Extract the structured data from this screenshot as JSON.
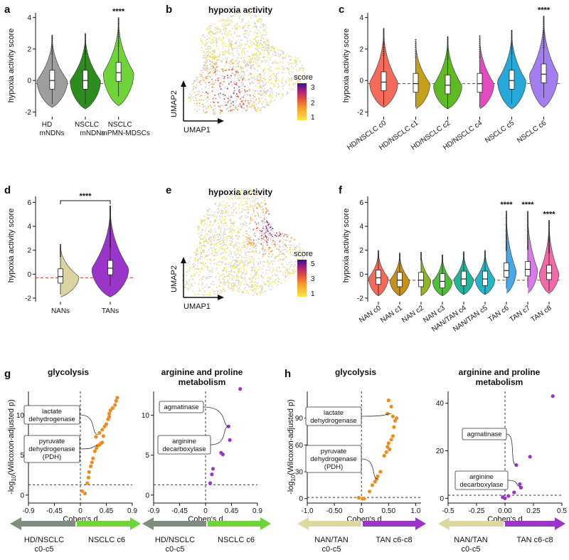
{
  "figure": {
    "colors": {
      "hd_mndns": "#9e9e9e",
      "nsclc_mndns": "#2e8b1e",
      "nsclc_mpmn": "#6fd33a",
      "nans": "#dcd4a0",
      "tans": "#9b35c9",
      "glyco_dot": "#f28b1e",
      "arg_dot": "#9b35c9",
      "gray_arrow": "#7f8c7f",
      "green_arrow": "#6fd33a",
      "beige_arrow": "#ddd8a0",
      "purple_arrow": "#9b35c9",
      "median_line": "#c0392b"
    }
  },
  "chart_data": [
    {
      "panel": "a",
      "type": "violin",
      "ylabel": "hypoxia activity score",
      "categories": [
        "HD mNDNs",
        "NSCLC mNDNs",
        "NSCLC mPMN-MDSCs"
      ],
      "medians": [
        0.0,
        0.0,
        0.5
      ],
      "ranges": [
        [
          -1.7,
          2.9
        ],
        [
          -1.8,
          3.0
        ],
        [
          -1.6,
          4.0
        ]
      ],
      "yticks": [
        -2,
        0,
        2,
        4
      ],
      "ylim": [
        -2.3,
        4.3
      ],
      "ref_line": -0.2,
      "significance": [
        {
          "category": 2,
          "label": "****"
        }
      ]
    },
    {
      "panel": "b",
      "type": "umap",
      "title": "hypoxia activity",
      "xlabel": "UMAP1",
      "ylabel": "UMAP2",
      "legend_title": "score",
      "legend_ticks": [
        "3",
        "2",
        "1"
      ]
    },
    {
      "panel": "c",
      "type": "violin",
      "ylabel": "hypoxia activity score",
      "categories": [
        "HD/NSCLC c0",
        "HD/NSCLC c1",
        "HD/NSCLC c2",
        "HD/NSCLC c4",
        "NSCLC c5",
        "NSCLC c6"
      ],
      "medians": [
        -0.1,
        -0.2,
        -0.3,
        -0.2,
        0.0,
        0.4
      ],
      "ranges": [
        [
          -1.7,
          3.3
        ],
        [
          -1.8,
          2.6
        ],
        [
          -1.8,
          2.8
        ],
        [
          -1.8,
          2.9
        ],
        [
          -1.8,
          3.2
        ],
        [
          -1.7,
          4.1
        ]
      ],
      "yticks": [
        -2,
        0,
        2,
        4
      ],
      "ylim": [
        -2.3,
        4.3
      ],
      "ref_line": -0.2,
      "significance": [
        {
          "category": 5,
          "label": "****"
        }
      ]
    },
    {
      "panel": "d",
      "type": "violin",
      "ylabel": "hypoxia activity score",
      "categories": [
        "NANs",
        "TANs"
      ],
      "medians": [
        -0.2,
        0.5
      ],
      "ranges": [
        [
          -1.9,
          2.5
        ],
        [
          -1.9,
          5.7
        ]
      ],
      "yticks": [
        -2,
        0,
        2,
        4,
        6
      ],
      "ylim": [
        -2.3,
        6.5
      ],
      "ref_line": -0.3,
      "bracket": {
        "from": 0,
        "to": 1,
        "label": "****"
      }
    },
    {
      "panel": "e",
      "type": "umap",
      "title": "hypoxia activity",
      "xlabel": "UMAP1",
      "ylabel": "UMAP2",
      "legend_title": "score",
      "legend_ticks": [
        "5",
        "3",
        "1"
      ]
    },
    {
      "panel": "f",
      "type": "violin",
      "ylabel": "hypoxia activity score",
      "categories": [
        "NAN c0",
        "NAN c1",
        "NAN c2",
        "NAN c3",
        "NAN/TAN c4",
        "NAN/TAN c5",
        "TAN c6",
        "TAN c7",
        "TAN c8"
      ],
      "medians": [
        -0.3,
        -0.5,
        -0.5,
        -0.6,
        -0.4,
        -0.4,
        0.3,
        0.4,
        0.1
      ],
      "ranges": [
        [
          -1.8,
          2.0
        ],
        [
          -1.8,
          1.8
        ],
        [
          -1.8,
          1.9
        ],
        [
          -1.8,
          1.6
        ],
        [
          -1.7,
          1.9
        ],
        [
          -1.7,
          2.0
        ],
        [
          -1.6,
          5.3
        ],
        [
          -1.6,
          5.3
        ],
        [
          -1.6,
          4.5
        ]
      ],
      "yticks": [
        -2,
        0,
        2,
        4,
        6
      ],
      "ylim": [
        -2.3,
        6.5
      ],
      "ref_line": -0.5,
      "significance": [
        {
          "category": 6,
          "label": "****"
        },
        {
          "category": 7,
          "label": "****"
        },
        {
          "category": 8,
          "label": "****"
        }
      ]
    },
    {
      "panel": "g",
      "type": "scatter",
      "title": "glycolysis",
      "xlabel": "Cohen's d",
      "ylabel": "-log10(Wilcoxon-adjusted p)",
      "xlim": [
        -0.9,
        0.9
      ],
      "xticks": [
        "-0.9",
        "-0.45",
        "0",
        "0.45",
        "0.9"
      ],
      "ylim": [
        -1,
        13
      ],
      "yticks": [
        "0",
        "5",
        "10"
      ],
      "threshold_y": 1.3,
      "points": [
        [
          0.03,
          0.5
        ],
        [
          0.08,
          0.2
        ],
        [
          0.12,
          1.5
        ],
        [
          0.14,
          2.2
        ],
        [
          0.15,
          2.9
        ],
        [
          0.18,
          3.6
        ],
        [
          0.2,
          4.1
        ],
        [
          0.22,
          4.6
        ],
        [
          0.25,
          5.5
        ],
        [
          0.28,
          5.9
        ],
        [
          0.3,
          6.2
        ],
        [
          0.33,
          6.3
        ],
        [
          0.36,
          6.5
        ],
        [
          0.38,
          6.6
        ],
        [
          0.27,
          7.3
        ],
        [
          0.33,
          7.8
        ],
        [
          0.38,
          8.2
        ],
        [
          0.42,
          8.6
        ],
        [
          0.45,
          8.9
        ],
        [
          0.48,
          9.5
        ],
        [
          0.5,
          10.2
        ],
        [
          0.52,
          10.6
        ],
        [
          0.56,
          10.9
        ],
        [
          0.6,
          11.3
        ],
        [
          0.62,
          11.8
        ],
        [
          0.64,
          12.2
        ],
        [
          0.5,
          9.8
        ],
        [
          0.4,
          7.4
        ]
      ],
      "labels": [
        {
          "text": "lactate dehydrogenase",
          "point": [
            0.3,
            7.6
          ]
        },
        {
          "text": "pyruvate dehydrogenase (PDH)",
          "point": [
            0.3,
            6.2
          ]
        }
      ]
    },
    {
      "panel": "g2",
      "type": "scatter",
      "title": "arginine and proline metabolism",
      "xlabel": "Cohen's d",
      "ylabel": "",
      "xlim": [
        -0.9,
        0.9
      ],
      "xticks": [
        "-0.9",
        "-0.45",
        "0",
        "0.45",
        "0.9"
      ],
      "ylim": [
        -1,
        13
      ],
      "threshold_y": 1.3,
      "points": [
        [
          0.08,
          1.5
        ],
        [
          0.11,
          2.6
        ],
        [
          0.13,
          3.3
        ],
        [
          0.27,
          5.3
        ],
        [
          0.3,
          5.1
        ],
        [
          0.42,
          6.9
        ],
        [
          0.4,
          8.6
        ],
        [
          0.6,
          13.3
        ]
      ],
      "labels": [
        {
          "text": "agmatinase",
          "point": [
            0.4,
            8.6
          ]
        },
        {
          "text": "arginine decarboxylase",
          "point": [
            0.4,
            8.6
          ]
        }
      ]
    },
    {
      "panel": "h",
      "type": "scatter",
      "title": "glycolysis",
      "xlabel": "Cohen's d",
      "ylabel": "-log10(Wilcoxon-adjusted p)",
      "xlim": [
        -1.0,
        1.1
      ],
      "xticks": [
        "-1.0",
        "-0.50",
        "0",
        "0.50",
        "1.0"
      ],
      "ylim": [
        -5,
        120
      ],
      "yticks": [
        "0",
        "30",
        "60",
        "90"
      ],
      "threshold_y": 1.3,
      "points": [
        [
          -0.05,
          1
        ],
        [
          0.02,
          0
        ],
        [
          0.05,
          0
        ],
        [
          0.15,
          8
        ],
        [
          0.2,
          15
        ],
        [
          0.25,
          19
        ],
        [
          0.28,
          22
        ],
        [
          0.3,
          25
        ],
        [
          0.35,
          30
        ],
        [
          0.42,
          48
        ],
        [
          0.46,
          52
        ],
        [
          0.48,
          58
        ],
        [
          0.5,
          62
        ],
        [
          0.52,
          55
        ],
        [
          0.55,
          66
        ],
        [
          0.58,
          70
        ],
        [
          0.6,
          80
        ],
        [
          0.62,
          87
        ],
        [
          0.65,
          90
        ],
        [
          0.48,
          95
        ],
        [
          0.5,
          110
        ],
        [
          0.55,
          103
        ],
        [
          0.58,
          92
        ]
      ],
      "labels": [
        {
          "text": "lactate dehydrogenase",
          "point": [
            0.55,
            95
          ]
        },
        {
          "text": "pyruvate dehydrogenase (PDH)",
          "point": [
            0.3,
            22
          ]
        }
      ]
    },
    {
      "panel": "h2",
      "type": "scatter",
      "title": "arginine and proline metabolism",
      "xlabel": "Cohen's d",
      "ylabel": "",
      "xlim": [
        -0.5,
        0.5
      ],
      "xticks": [
        "-0.5",
        "-0.25",
        "0.00",
        "0.25",
        "0.5"
      ],
      "ylim": [
        -2,
        45
      ],
      "yticks": [
        "0",
        "20",
        "40"
      ],
      "threshold_y": 1.3,
      "points": [
        [
          -0.02,
          0.5
        ],
        [
          0.0,
          0
        ],
        [
          0.03,
          1
        ],
        [
          0.08,
          2.5
        ],
        [
          0.1,
          14
        ],
        [
          0.13,
          6
        ],
        [
          0.14,
          4.5
        ],
        [
          0.22,
          17.5
        ],
        [
          0.42,
          43
        ]
      ],
      "labels": [
        {
          "text": "agmatinase",
          "point": [
            0.1,
            14
          ]
        },
        {
          "text": "arginine decarboxylase",
          "point": [
            0.14,
            5
          ]
        }
      ]
    }
  ],
  "panels": {
    "a": {
      "letter": "a",
      "ylabel": "hypoxia activity score",
      "xticks": [
        "HD mNDNs",
        "NSCLC mNDNs",
        "NSCLC mPMN-MDSCs"
      ]
    },
    "b": {
      "letter": "b",
      "title": "hypoxia activity",
      "xlabel": "UMAP1",
      "ylabel": "UMAP2",
      "legend_title": "score",
      "legend_ticks": [
        "3",
        "2",
        "1"
      ]
    },
    "c": {
      "letter": "c",
      "ylabel": "hypoxia activity score"
    },
    "d": {
      "letter": "d",
      "ylabel": "hypoxia activity score"
    },
    "e": {
      "letter": "e",
      "title": "hypoxia activity",
      "xlabel": "UMAP1",
      "ylabel": "UMAP2",
      "legend_title": "score",
      "legend_ticks": [
        "5",
        "3",
        "1"
      ]
    },
    "f": {
      "letter": "f",
      "ylabel": "hypoxia activity score"
    },
    "g": {
      "letter": "g",
      "title1": "glycolysis",
      "title2_line1": "arginine and proline",
      "title2_line2": "metabolism"
    },
    "h": {
      "letter": "h",
      "title1": "glycolysis",
      "title2_line1": "arginine and proline",
      "title2_line2": "metabolism"
    },
    "scatter_ylabel": "-log10(Wilcoxon-adjusted p)",
    "xlabel_cohen": "Cohen's d",
    "ann": {
      "lactate_1": "lactate",
      "lactate_2": "dehydrogenase",
      "pyruvate_1": "pyruvate",
      "pyruvate_2": "dehydrogenase",
      "pyruvate_3": "(PDH)",
      "agmatinase": "agmatinase",
      "argdec_1": "arginine",
      "argdec_2": "decarboxylase"
    },
    "arrows": {
      "hd_nsclc_1": "HD/NSCLC",
      "hd_nsclc_2": "c0-c5",
      "nsclc_c6": "NSCLC c6",
      "nan_tan_1": "NAN/TAN",
      "nan_tan_2": "c0-c5",
      "tan_c6c8": "TAN c6-c8"
    }
  }
}
